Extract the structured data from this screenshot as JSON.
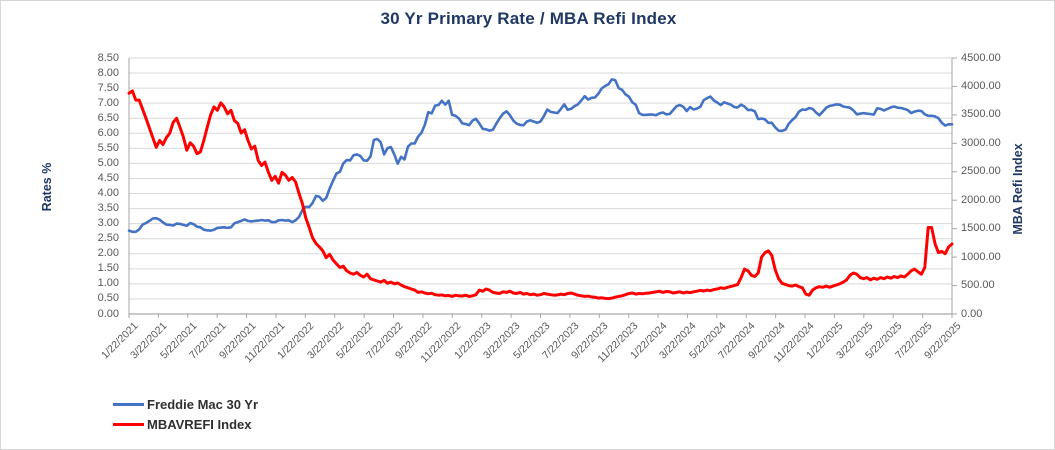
{
  "chart_data": {
    "type": "line",
    "title": "30 Yr Primary Rate / MBA Refi Index",
    "grid": "horizontal",
    "left_axis": {
      "title": "Rates %",
      "min": 0,
      "max": 8.5,
      "tick_labels": [
        "8.50",
        "8.00",
        "7.50",
        "7.00",
        "6.50",
        "6.00",
        "5.50",
        "5.00",
        "4.50",
        "4.00",
        "3.50",
        "3.00",
        "2.50",
        "2.00",
        "1.50",
        "1.00",
        "0.50",
        "0.00"
      ]
    },
    "right_axis": {
      "title": "MBA Refi Index",
      "min": 0,
      "max": 4500,
      "tick_labels": [
        "4500.00",
        "4000.00",
        "3500.00",
        "3000.00",
        "2500.00",
        "2000.00",
        "1500.00",
        "1000.00",
        "500.00",
        "0.00"
      ]
    },
    "x_axis": {
      "frequency": "weekly",
      "start_date": "1/22/2021",
      "end_date": "9/22/2025",
      "tick_labels": [
        "1/22/2021",
        "3/22/2021",
        "5/22/2021",
        "7/22/2021",
        "9/22/2021",
        "11/22/2021",
        "1/22/2022",
        "3/22/2022",
        "5/22/2022",
        "7/22/2022",
        "9/22/2022",
        "11/22/2022",
        "1/22/2023",
        "3/22/2023",
        "5/22/2023",
        "7/22/2023",
        "9/22/2023",
        "11/22/2023",
        "1/22/2024",
        "3/22/2024",
        "5/22/2024",
        "7/22/2024",
        "9/22/2024",
        "11/22/2024",
        "1/22/2025",
        "3/22/2025",
        "5/22/2025",
        "7/22/2025",
        "9/22/2025"
      ]
    },
    "legend": {
      "position": "bottom-left",
      "items": [
        {
          "label": "Freddie Mac 30 Yr",
          "color": "#4472C4"
        },
        {
          "label": "MBAVREFI Index",
          "color": "#FF0000"
        }
      ]
    },
    "series": [
      {
        "name": "Freddie Mac 30 Yr",
        "axis": "left",
        "color": "#4472C4",
        "values": [
          2.77,
          2.73,
          2.73,
          2.81,
          2.97,
          3.02,
          3.09,
          3.17,
          3.18,
          3.13,
          3.04,
          2.97,
          2.96,
          2.94,
          3.0,
          2.99,
          2.96,
          2.93,
          3.02,
          2.98,
          2.9,
          2.88,
          2.8,
          2.78,
          2.77,
          2.8,
          2.86,
          2.87,
          2.88,
          2.86,
          2.88,
          3.01,
          3.05,
          3.09,
          3.14,
          3.09,
          3.07,
          3.09,
          3.1,
          3.12,
          3.1,
          3.11,
          3.05,
          3.05,
          3.11,
          3.12,
          3.1,
          3.11,
          3.05,
          3.11,
          3.22,
          3.45,
          3.56,
          3.55,
          3.69,
          3.92,
          3.89,
          3.76,
          3.85,
          4.16,
          4.42,
          4.67,
          4.72,
          5.0,
          5.11,
          5.1,
          5.27,
          5.3,
          5.25,
          5.1,
          5.09,
          5.23,
          5.78,
          5.81,
          5.7,
          5.3,
          5.51,
          5.54,
          5.3,
          4.99,
          5.22,
          5.13,
          5.55,
          5.66,
          5.66,
          5.89,
          6.02,
          6.29,
          6.7,
          6.66,
          6.92,
          6.94,
          7.08,
          6.95,
          7.08,
          6.61,
          6.58,
          6.49,
          6.33,
          6.31,
          6.27,
          6.42,
          6.48,
          6.33,
          6.15,
          6.13,
          6.09,
          6.12,
          6.32,
          6.5,
          6.65,
          6.73,
          6.6,
          6.42,
          6.32,
          6.28,
          6.27,
          6.39,
          6.43,
          6.39,
          6.35,
          6.39,
          6.57,
          6.79,
          6.71,
          6.69,
          6.67,
          6.81,
          6.96,
          6.78,
          6.81,
          6.9,
          6.96,
          7.09,
          7.23,
          7.12,
          7.18,
          7.19,
          7.31,
          7.49,
          7.57,
          7.63,
          7.79,
          7.76,
          7.5,
          7.44,
          7.29,
          7.22,
          7.03,
          6.95,
          6.67,
          6.61,
          6.61,
          6.62,
          6.62,
          6.6,
          6.66,
          6.69,
          6.63,
          6.64,
          6.77,
          6.9,
          6.94,
          6.88,
          6.74,
          6.87,
          6.79,
          6.82,
          6.88,
          7.1,
          7.17,
          7.22,
          7.09,
          7.02,
          6.94,
          7.03,
          6.99,
          6.95,
          6.87,
          6.86,
          6.95,
          6.89,
          6.77,
          6.78,
          6.73,
          6.47,
          6.49,
          6.46,
          6.35,
          6.35,
          6.2,
          6.09,
          6.08,
          6.12,
          6.32,
          6.44,
          6.54,
          6.72,
          6.79,
          6.78,
          6.84,
          6.81,
          6.69,
          6.6,
          6.72,
          6.85,
          6.91,
          6.93,
          6.96,
          6.95,
          6.89,
          6.87,
          6.85,
          6.76,
          6.63,
          6.65,
          6.67,
          6.65,
          6.64,
          6.62,
          6.83,
          6.81,
          6.76,
          6.81,
          6.86,
          6.89,
          6.85,
          6.84,
          6.81,
          6.77,
          6.67,
          6.72,
          6.75,
          6.74,
          6.63,
          6.58,
          6.58,
          6.56,
          6.5,
          6.35,
          6.26,
          6.3,
          6.3
        ]
      },
      {
        "name": "MBAVREFI Index",
        "axis": "right",
        "color": "#FF0000",
        "values": [
          3880,
          3920,
          3760,
          3760,
          3600,
          3440,
          3270,
          3100,
          2930,
          3050,
          2980,
          3100,
          3180,
          3370,
          3440,
          3280,
          3110,
          2880,
          3010,
          2950,
          2820,
          2850,
          3050,
          3280,
          3500,
          3640,
          3580,
          3710,
          3640,
          3520,
          3580,
          3400,
          3350,
          3180,
          3240,
          3050,
          2900,
          2950,
          2700,
          2610,
          2670,
          2490,
          2350,
          2420,
          2300,
          2490,
          2440,
          2350,
          2400,
          2320,
          2120,
          1940,
          1690,
          1520,
          1340,
          1240,
          1180,
          1110,
          990,
          1050,
          950,
          880,
          820,
          840,
          760,
          720,
          700,
          730,
          680,
          650,
          700,
          620,
          600,
          580,
          560,
          590,
          540,
          560,
          530,
          545,
          510,
          480,
          460,
          440,
          420,
          380,
          390,
          370,
          355,
          365,
          340,
          330,
          335,
          320,
          325,
          310,
          330,
          320,
          315,
          330,
          310,
          320,
          340,
          420,
          400,
          440,
          420,
          380,
          370,
          360,
          390,
          380,
          400,
          370,
          360,
          380,
          350,
          360,
          340,
          350,
          330,
          340,
          360,
          350,
          340,
          330,
          335,
          350,
          340,
          360,
          370,
          350,
          330,
          320,
          310,
          315,
          300,
          295,
          280,
          285,
          275,
          270,
          280,
          295,
          310,
          320,
          340,
          360,
          370,
          350,
          360,
          355,
          365,
          370,
          380,
          390,
          400,
          380,
          395,
          390,
          370,
          380,
          390,
          370,
          385,
          375,
          390,
          400,
          415,
          405,
          420,
          410,
          430,
          440,
          460,
          450,
          470,
          485,
          500,
          520,
          640,
          790,
          760,
          680,
          660,
          720,
          1000,
          1080,
          1110,
          1030,
          780,
          620,
          540,
          520,
          500,
          490,
          510,
          480,
          460,
          350,
          330,
          420,
          460,
          480,
          470,
          490,
          470,
          490,
          510,
          530,
          560,
          600,
          680,
          720,
          700,
          640,
          620,
          640,
          600,
          630,
          610,
          640,
          620,
          650,
          630,
          660,
          640,
          670,
          650,
          700,
          760,
          790,
          740,
          700,
          820,
          1520,
          1520,
          1240,
          1080,
          1100,
          1060,
          1180,
          1230
        ]
      }
    ]
  },
  "colors": {
    "title": "#1F3864",
    "axis_title": "#1F3864",
    "tick_text": "#595959",
    "grid": "#D9D9D9",
    "axis_line": "#A6A6A6",
    "series_blue": "#4472C4",
    "series_red": "#FF0000",
    "background": "#FFFFFF"
  }
}
